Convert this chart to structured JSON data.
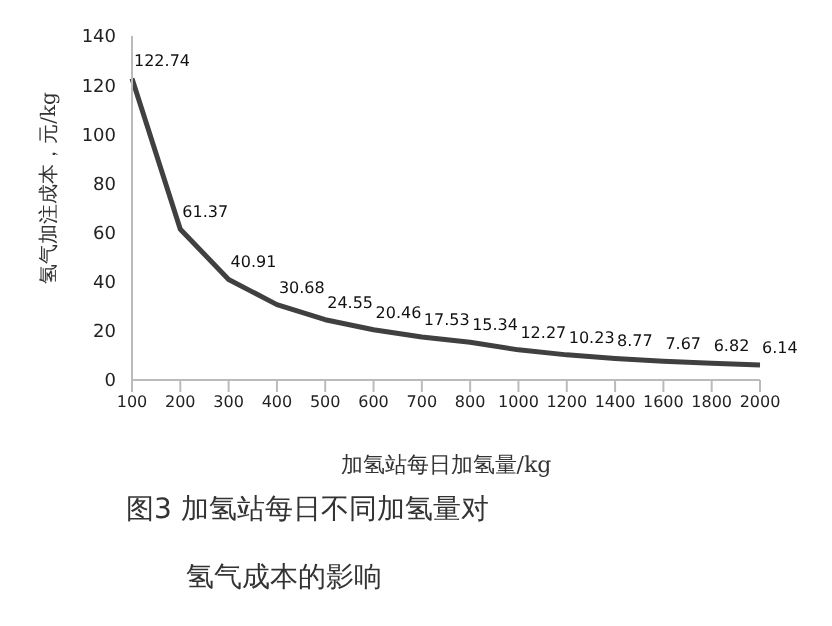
{
  "chart_data": {
    "type": "line",
    "categories": [
      "100",
      "200",
      "300",
      "400",
      "500",
      "600",
      "700",
      "800",
      "1000",
      "1200",
      "1400",
      "1600",
      "1800",
      "2000"
    ],
    "values": [
      122.74,
      61.37,
      40.91,
      30.68,
      24.55,
      20.46,
      17.53,
      15.34,
      12.27,
      10.23,
      8.77,
      7.67,
      6.82,
      6.14
    ],
    "color": "#404040",
    "ylim": [
      0,
      140
    ],
    "yticks": [
      0,
      20,
      40,
      60,
      80,
      100,
      120,
      140
    ],
    "xlabel": "加氢站每日加氢量/kg",
    "ylabel": "氢气加注成本，元/kg",
    "data_labels": true,
    "grid": false,
    "legend": false,
    "marker": "none",
    "line_style": "solid",
    "annotations": [
      "图3  加氢站每日不同加氢量对",
      "氢气成本的影响"
    ]
  }
}
